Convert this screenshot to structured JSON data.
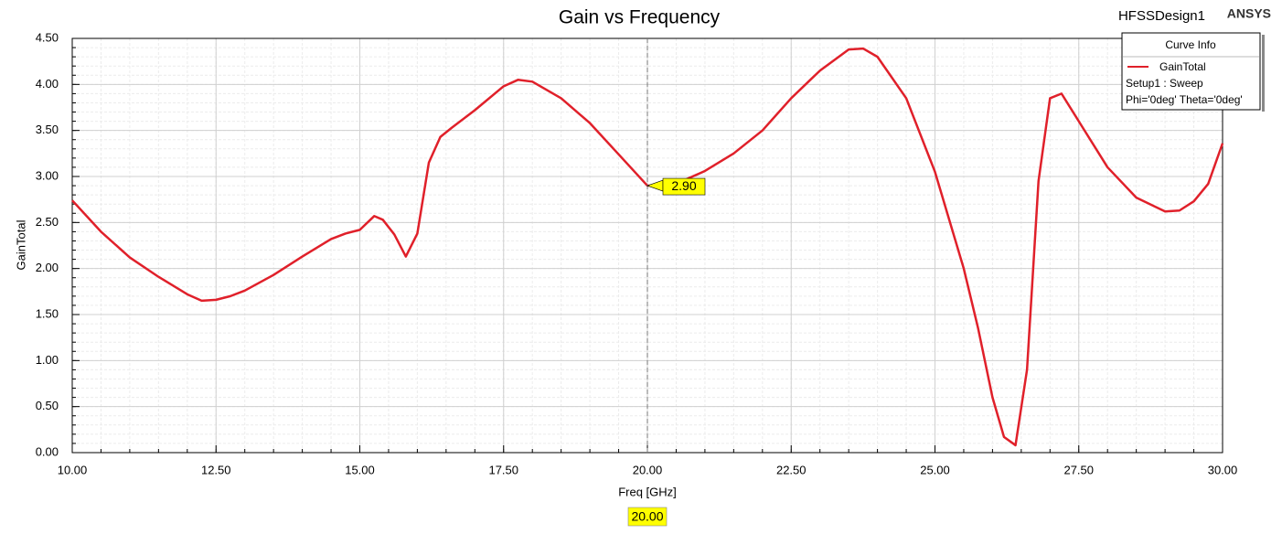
{
  "chart_data": {
    "type": "line",
    "title": "Gain vs Frequency",
    "design_name": "HFSSDesign1",
    "brand": "ANSYS",
    "xlabel": "Freq [GHz]",
    "ylabel": "GainTotal",
    "xlim": [
      10,
      30
    ],
    "ylim": [
      0,
      4.5
    ],
    "xticks": [
      {
        "value": 10,
        "label": "10.00"
      },
      {
        "value": 12.5,
        "label": "12.50"
      },
      {
        "value": 15,
        "label": "15.00"
      },
      {
        "value": 17.5,
        "label": "17.50"
      },
      {
        "value": 20,
        "label": "20.00"
      },
      {
        "value": 22.5,
        "label": "22.50"
      },
      {
        "value": 25,
        "label": "25.00"
      },
      {
        "value": 27.5,
        "label": "27.50"
      },
      {
        "value": 30,
        "label": "30.00"
      }
    ],
    "yticks": [
      {
        "value": 0,
        "label": "0.00"
      },
      {
        "value": 0.5,
        "label": "0.50"
      },
      {
        "value": 1,
        "label": "1.00"
      },
      {
        "value": 1.5,
        "label": "1.50"
      },
      {
        "value": 2,
        "label": "2.00"
      },
      {
        "value": 2.5,
        "label": "2.50"
      },
      {
        "value": 3,
        "label": "3.00"
      },
      {
        "value": 3.5,
        "label": "3.50"
      },
      {
        "value": 4,
        "label": "4.00"
      },
      {
        "value": 4.5,
        "label": "4.50"
      }
    ],
    "xminor": [
      10,
      10.5,
      11,
      11.5,
      12,
      12.5,
      13,
      13.5,
      14,
      14.5,
      15,
      15.5,
      16,
      16.5,
      17,
      17.5,
      18,
      18.5,
      19,
      19.5,
      20,
      20.5,
      21,
      21.5,
      22,
      22.5,
      23,
      23.5,
      24,
      24.5,
      25,
      25.5,
      26,
      26.5,
      27,
      27.5,
      28,
      28.5,
      29,
      29.5,
      30
    ],
    "yminor": [
      0,
      0.1,
      0.2,
      0.3,
      0.4,
      0.5,
      0.6,
      0.7,
      0.8,
      0.9,
      1,
      1.1,
      1.2,
      1.3,
      1.4,
      1.5,
      1.6,
      1.7,
      1.8,
      1.9,
      2,
      2.1,
      2.2,
      2.3,
      2.4,
      2.5,
      2.6,
      2.7,
      2.8,
      2.9,
      3,
      3.1,
      3.2,
      3.3,
      3.4,
      3.5,
      3.6,
      3.7,
      3.8,
      3.9,
      4,
      4.1,
      4.2,
      4.3,
      4.4,
      4.5
    ],
    "grid": true,
    "legend_title": "Curve Info",
    "legend_position": "top-right",
    "legend_notes": [
      "Setup1 : Sweep",
      "Phi='0deg' Theta='0deg'"
    ],
    "x": [
      10,
      10.5,
      11,
      11.5,
      12,
      12.25,
      12.5,
      12.75,
      13,
      13.5,
      14,
      14.5,
      14.75,
      15,
      15.25,
      15.4,
      15.6,
      15.8,
      16,
      16.2,
      16.4,
      16.6,
      17,
      17.5,
      17.75,
      18,
      18.5,
      19,
      19.5,
      20,
      20.5,
      21,
      21.5,
      22,
      22.5,
      23,
      23.5,
      23.75,
      24,
      24.5,
      25,
      25.5,
      25.75,
      26,
      26.2,
      26.4,
      26.6,
      26.8,
      27,
      27.2,
      27.5,
      28,
      28.5,
      29,
      29.25,
      29.5,
      29.75,
      30
    ],
    "series": [
      {
        "name": "GainTotal",
        "color": "#e0202a",
        "values": [
          2.74,
          2.4,
          2.12,
          1.91,
          1.72,
          1.65,
          1.66,
          1.7,
          1.76,
          1.93,
          2.13,
          2.32,
          2.38,
          2.42,
          2.57,
          2.53,
          2.37,
          2.13,
          2.38,
          3.15,
          3.43,
          3.53,
          3.72,
          3.98,
          4.05,
          4.03,
          3.85,
          3.58,
          3.24,
          2.9,
          2.92,
          3.06,
          3.25,
          3.5,
          3.85,
          4.15,
          4.38,
          4.39,
          4.3,
          3.85,
          3.05,
          2.0,
          1.35,
          0.6,
          0.17,
          0.08,
          0.9,
          2.95,
          3.85,
          3.9,
          3.6,
          3.1,
          2.77,
          2.62,
          2.63,
          2.73,
          2.92,
          3.36
        ]
      }
    ],
    "marker": {
      "x": {
        "value": 20,
        "label": "20.00"
      },
      "y": {
        "value": 2.9,
        "label": "2.90"
      }
    }
  }
}
